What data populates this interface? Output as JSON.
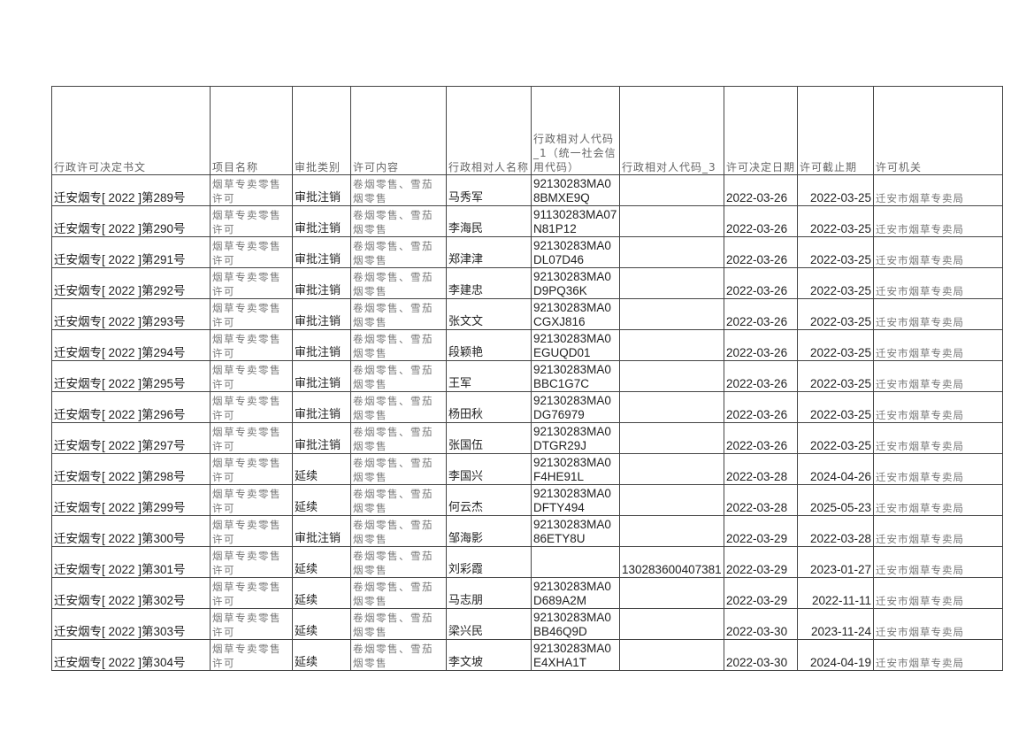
{
  "headers": [
    "行政许可决定书文",
    "项目名称",
    "审批类别",
    "许可内容",
    "行政相对人名称",
    "行政相对人代码_1（统一社会信用代码）",
    "行政相对人代码_3",
    "许可决定日期",
    "许可截止期",
    "许可机关"
  ],
  "common": {
    "project": "烟草专卖零售许可",
    "content": "卷烟零售、雪茄烟零售",
    "authority": "迁安市烟草专卖局"
  },
  "rows": [
    {
      "doc": "迁安烟专[ 2022 ]第289号",
      "type": "审批注销",
      "name": "马秀军",
      "code1": "92130283MA08BMXE9Q",
      "code3": "",
      "start": "2022-03-26",
      "end": "2022-03-25"
    },
    {
      "doc": "迁安烟专[ 2022 ]第290号",
      "type": "审批注销",
      "name": "李海民",
      "code1": "91130283MA07N81P12",
      "code3": "",
      "start": "2022-03-26",
      "end": "2022-03-25"
    },
    {
      "doc": "迁安烟专[ 2022 ]第291号",
      "type": "审批注销",
      "name": "郑津津",
      "code1": "92130283MA0DL07D46",
      "code3": "",
      "start": "2022-03-26",
      "end": "2022-03-25"
    },
    {
      "doc": "迁安烟专[ 2022 ]第292号",
      "type": "审批注销",
      "name": "李建忠",
      "code1": "92130283MA0D9PQ36K",
      "code3": "",
      "start": "2022-03-26",
      "end": "2022-03-25"
    },
    {
      "doc": "迁安烟专[ 2022 ]第293号",
      "type": "审批注销",
      "name": "张文文",
      "code1": "92130283MA0CGXJ816",
      "code3": "",
      "start": "2022-03-26",
      "end": "2022-03-25"
    },
    {
      "doc": "迁安烟专[ 2022 ]第294号",
      "type": "审批注销",
      "name": "段颖艳",
      "code1": "92130283MA0EGUQD01",
      "code3": "",
      "start": "2022-03-26",
      "end": "2022-03-25"
    },
    {
      "doc": "迁安烟专[ 2022 ]第295号",
      "type": "审批注销",
      "name": "王军",
      "code1": "92130283MA0BBC1G7C",
      "code3": "",
      "start": "2022-03-26",
      "end": "2022-03-25"
    },
    {
      "doc": "迁安烟专[ 2022 ]第296号",
      "type": "审批注销",
      "name": "杨田秋",
      "code1": "92130283MA0DG76979",
      "code3": "",
      "start": "2022-03-26",
      "end": "2022-03-25"
    },
    {
      "doc": "迁安烟专[ 2022 ]第297号",
      "type": "审批注销",
      "name": "张国伍",
      "code1": "92130283MA0DTGR29J",
      "code3": "",
      "start": "2022-03-26",
      "end": "2022-03-25"
    },
    {
      "doc": "迁安烟专[ 2022 ]第298号",
      "type": "延续",
      "name": "李国兴",
      "code1": "92130283MA0F4HE91L",
      "code3": "",
      "start": "2022-03-28",
      "end": "2024-04-26"
    },
    {
      "doc": "迁安烟专[ 2022 ]第299号",
      "type": "延续",
      "name": "何云杰",
      "code1": "92130283MA0DFTY494",
      "code3": "",
      "start": "2022-03-28",
      "end": "2025-05-23"
    },
    {
      "doc": "迁安烟专[ 2022 ]第300号",
      "type": "审批注销",
      "name": "邹海影",
      "code1": "92130283MA086ETY8U",
      "code3": "",
      "start": "2022-03-29",
      "end": "2022-03-28"
    },
    {
      "doc": "迁安烟专[ 2022 ]第301号",
      "type": "延续",
      "name": "刘彩霞",
      "code1": "",
      "code3": "130283600407381",
      "start": "2022-03-29",
      "end": "2023-01-27"
    },
    {
      "doc": "迁安烟专[ 2022 ]第302号",
      "type": "延续",
      "name": "马志朋",
      "code1": "92130283MA0D689A2M",
      "code3": "",
      "start": "2022-03-29",
      "end": "2022-11-11"
    },
    {
      "doc": "迁安烟专[ 2022 ]第303号",
      "type": "延续",
      "name": "梁兴民",
      "code1": "92130283MA0BB46Q9D",
      "code3": "",
      "start": "2022-03-30",
      "end": "2023-11-24"
    },
    {
      "doc": "迁安烟专[ 2022 ]第304号",
      "type": "延续",
      "name": "李文坡",
      "code1": "92130283MA0E4XHA1T",
      "code3": "",
      "start": "2022-03-30",
      "end": "2024-04-19"
    }
  ]
}
